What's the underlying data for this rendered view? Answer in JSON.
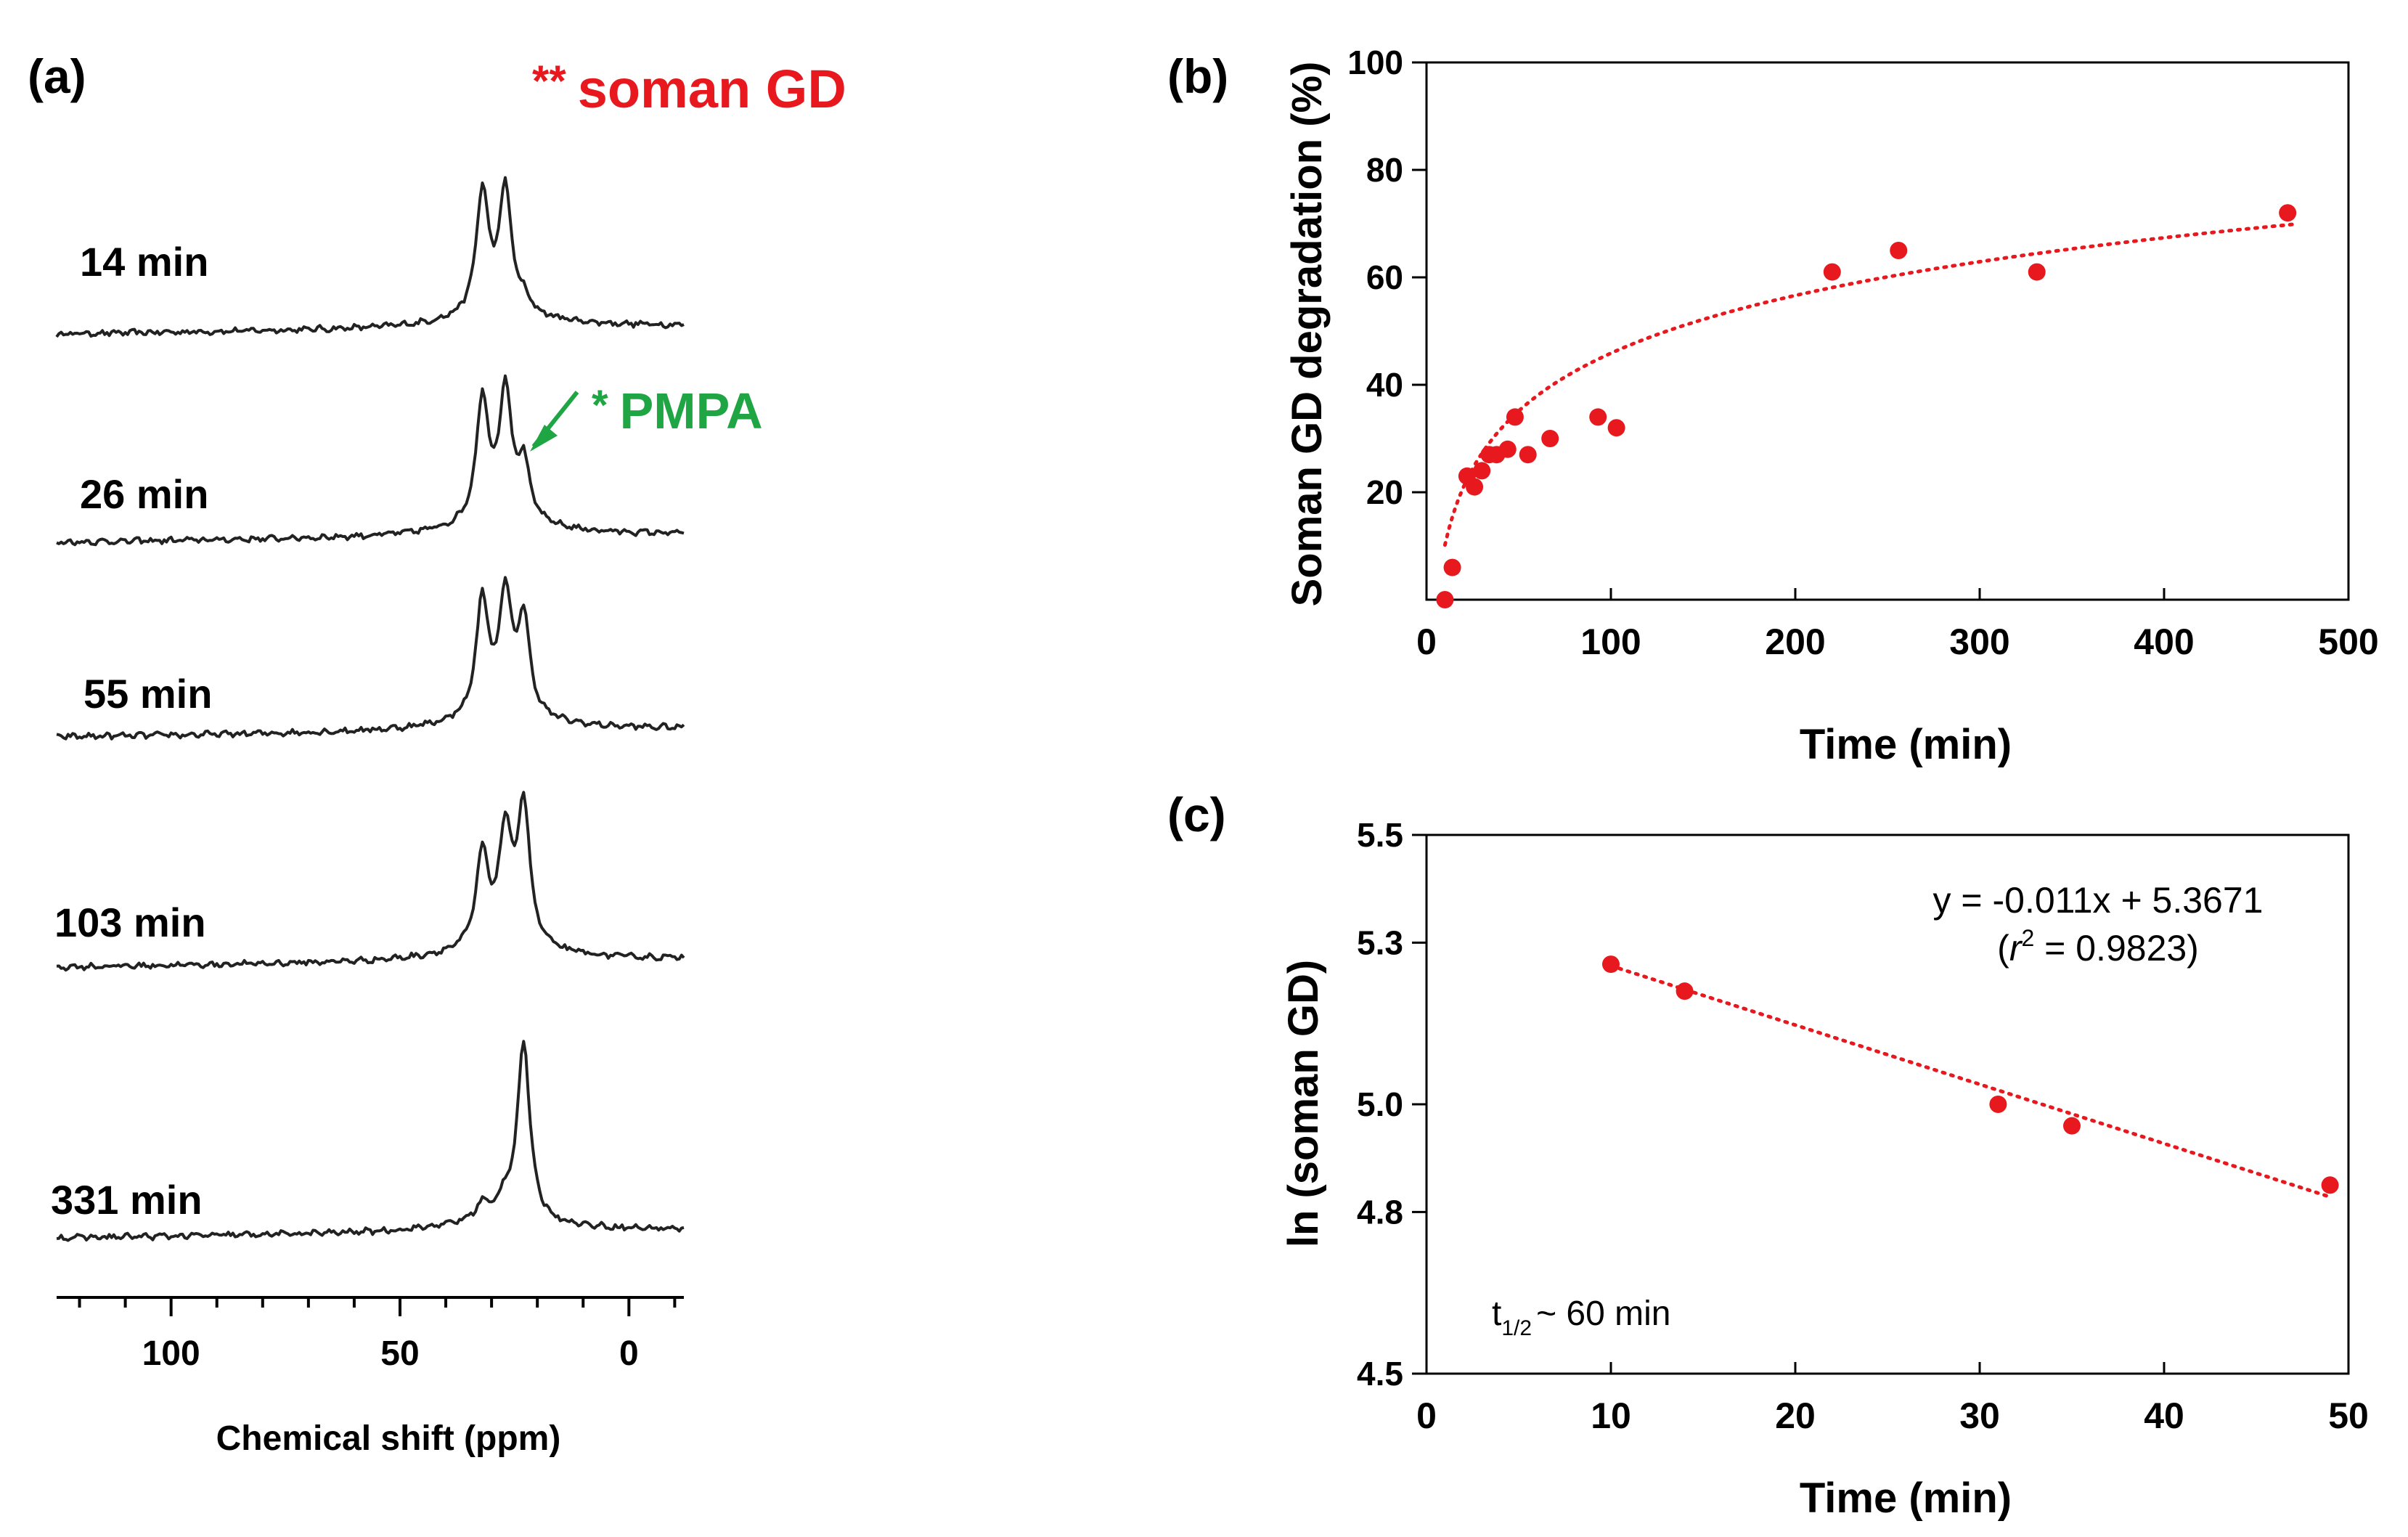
{
  "panel_a": {
    "label": "(a)",
    "gd_marker": "**",
    "gd_label": "soman GD",
    "pmpa_marker": "*",
    "pmpa_label": "PMPA",
    "spectra": [
      {
        "label": "14 min",
        "peaks": [
          [
            32,
            1.0
          ],
          [
            27,
            1.0
          ],
          [
            23,
            0.1
          ]
        ]
      },
      {
        "label": "26 min",
        "peaks": [
          [
            32,
            1.0
          ],
          [
            27,
            1.05
          ],
          [
            23,
            0.45
          ]
        ]
      },
      {
        "label": "55 min",
        "peaks": [
          [
            32,
            0.95
          ],
          [
            27,
            0.95
          ],
          [
            23,
            0.78
          ]
        ]
      },
      {
        "label": "103 min",
        "peaks": [
          [
            32,
            0.75
          ],
          [
            27,
            0.9
          ],
          [
            23,
            1.15
          ]
        ]
      },
      {
        "label": "331 min",
        "peaks": [
          [
            32,
            0.12
          ],
          [
            27,
            0.15
          ],
          [
            23,
            1.45
          ]
        ]
      }
    ]
  },
  "panel_b": {
    "label": "(b)"
  },
  "panel_c": {
    "label": "(c)",
    "eq_line1": "y = -0.011x + 5.3671",
    "eq_open": "(",
    "eq_r": "r",
    "eq_sup": "2",
    "eq_rest": " = 0.9823)",
    "half_t": "t",
    "half_sub": "1/2",
    "half_rest": "~ 60 min"
  },
  "colors": {
    "gd": "#e8191e",
    "pmpa": "#1fa544",
    "marker": "#e8191e",
    "axis": "#000000",
    "spectrum": "#222222"
  },
  "chart_data": [
    {
      "id": "a",
      "type": "line",
      "title": "",
      "xlabel": "Chemical shift (ppm)",
      "ylabel": "",
      "xlim": [
        125,
        -12
      ],
      "xticks": [
        100,
        50,
        0
      ],
      "series": [
        {
          "name": "14 min",
          "peaks_ppm": [
            32,
            27
          ]
        },
        {
          "name": "26 min",
          "peaks_ppm": [
            32,
            27,
            23
          ]
        },
        {
          "name": "55 min",
          "peaks_ppm": [
            32,
            27,
            23
          ]
        },
        {
          "name": "103 min",
          "peaks_ppm": [
            32,
            27,
            23
          ]
        },
        {
          "name": "331 min",
          "peaks_ppm": [
            23
          ]
        }
      ]
    },
    {
      "id": "b",
      "type": "scatter",
      "title": "",
      "xlabel": "Time (min)",
      "ylabel": "Soman GD degradation (%)",
      "xlim": [
        0,
        500
      ],
      "ylim": [
        0,
        100
      ],
      "xticks": [
        0,
        100,
        200,
        300,
        400,
        500
      ],
      "yticks": [
        20,
        40,
        60,
        80,
        100
      ],
      "x": [
        10,
        14,
        22,
        26,
        30,
        34,
        38,
        44,
        48,
        55,
        67,
        93,
        103,
        220,
        256,
        331,
        467
      ],
      "y": [
        0,
        6,
        23,
        21,
        24,
        27,
        27,
        28,
        34,
        27,
        30,
        34,
        32,
        61,
        65,
        61,
        72
      ],
      "trend": {
        "type": "log",
        "a": 15.5,
        "b": -25.5
      }
    },
    {
      "id": "c",
      "type": "scatter",
      "title": "",
      "xlabel": "Time (min)",
      "ylabel": "ln (soman GD)",
      "xlim": [
        0,
        50
      ],
      "ylim": [
        4.5,
        5.5
      ],
      "xticks": [
        0,
        10,
        20,
        30,
        40,
        50
      ],
      "yticks": [
        4.5,
        4.8,
        5.0,
        5.3,
        5.5
      ],
      "x": [
        10,
        14,
        31,
        35,
        49
      ],
      "y": [
        5.26,
        5.21,
        5.0,
        4.96,
        4.85
      ],
      "trend": {
        "type": "linear",
        "slope": -0.011,
        "intercept": 5.3671,
        "r2": 0.9823
      }
    }
  ]
}
